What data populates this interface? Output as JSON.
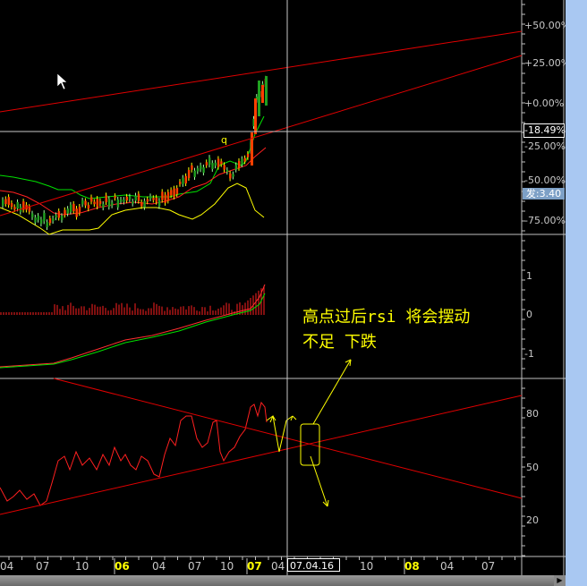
{
  "price_axis": {
    "ticks": [
      "+50.00%",
      "+25.00%",
      "+0.00%",
      "-25.00%",
      "-50.00%",
      "-75.00%"
    ],
    "current_value": "-18.49%",
    "fa_label": "发:3.40"
  },
  "macd_axis": {
    "ticks": [
      "1",
      "0",
      "-1"
    ]
  },
  "rsi_axis": {
    "ticks": [
      "80",
      "50",
      "20"
    ]
  },
  "time_axis": {
    "labels": [
      {
        "text": "04",
        "year": false
      },
      {
        "text": "07",
        "year": false
      },
      {
        "text": "10",
        "year": false
      },
      {
        "text": "06",
        "year": true
      },
      {
        "text": "04",
        "year": false
      },
      {
        "text": "07",
        "year": false
      },
      {
        "text": "10",
        "year": false
      },
      {
        "text": "07",
        "year": true
      },
      {
        "text": "04",
        "year": false
      },
      {
        "text": "10",
        "year": false
      },
      {
        "text": "08",
        "year": true
      },
      {
        "text": "04",
        "year": false
      },
      {
        "text": "07",
        "year": false
      }
    ],
    "cursor_date": "07.04.16 一"
  },
  "candle_marker": "q",
  "annotation": {
    "line1": "高点过后rsi 将会摆动",
    "line2": "不足 下跌"
  },
  "colors": {
    "background": "#000000",
    "up": "#ff4000",
    "down": "#20a020",
    "trendline": "#e00000",
    "annotation": "#ffff00",
    "year_label": "#ffff00"
  }
}
